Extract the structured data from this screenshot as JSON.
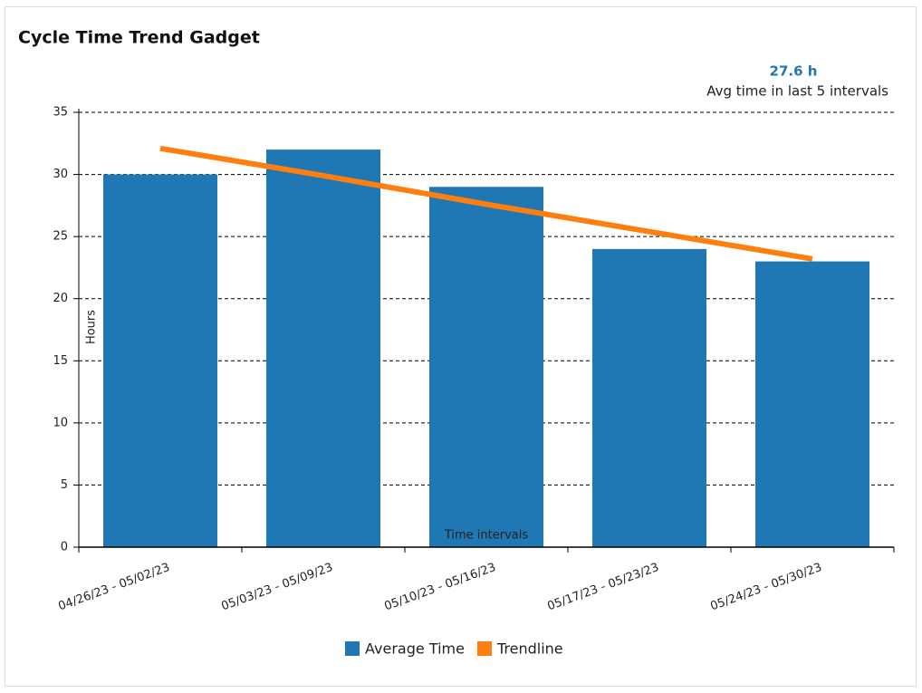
{
  "chart_data": {
    "type": "bar",
    "title": "Cycle Time Trend Gadget",
    "summary": {
      "value_label": "27.6 h",
      "caption": "Avg time in last 5 intervals"
    },
    "ylabel": "Hours",
    "xlabel": "Time intervals",
    "categories": [
      "04/26/23 - 05/02/23",
      "05/03/23 - 05/09/23",
      "05/10/23 - 05/16/23",
      "05/17/23 - 05/23/23",
      "05/24/23 - 05/30/23"
    ],
    "series": [
      {
        "name": "Average Time",
        "type": "bar",
        "color": "#1f77b4",
        "values": [
          30,
          32,
          29,
          24,
          23
        ]
      },
      {
        "name": "Trendline",
        "type": "line",
        "color": "#ff7f0e",
        "values": [
          32.1,
          29.9,
          27.6,
          25.4,
          23.2
        ]
      }
    ],
    "ylim": [
      0,
      35
    ],
    "yticks": [
      0,
      5,
      10,
      15,
      20,
      25,
      30,
      35
    ],
    "grid": true
  }
}
